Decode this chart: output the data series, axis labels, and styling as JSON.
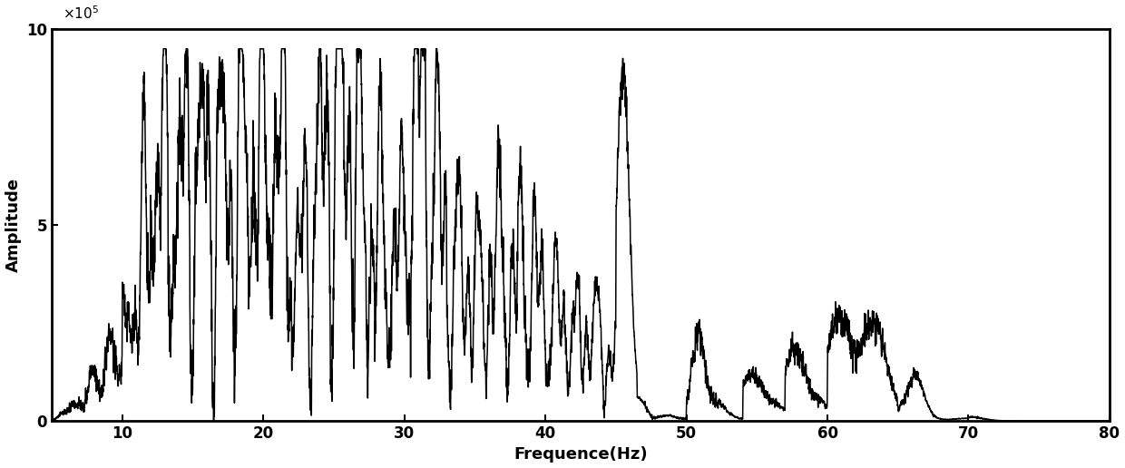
{
  "xlabel": "Frequence(Hz)",
  "ylabel": "Amplitude",
  "xlim": [
    5,
    80
  ],
  "ylim": [
    0,
    1000000
  ],
  "xticks": [
    10,
    20,
    30,
    40,
    50,
    60,
    70,
    80
  ],
  "yticks": [
    0,
    500000,
    1000000
  ],
  "ytick_labels": [
    "0",
    "5",
    "10"
  ],
  "line_color": "#000000",
  "line_width": 1.1,
  "bg_color": "#ffffff",
  "xlabel_fontsize": 13,
  "ylabel_fontsize": 13,
  "tick_fontsize": 12
}
